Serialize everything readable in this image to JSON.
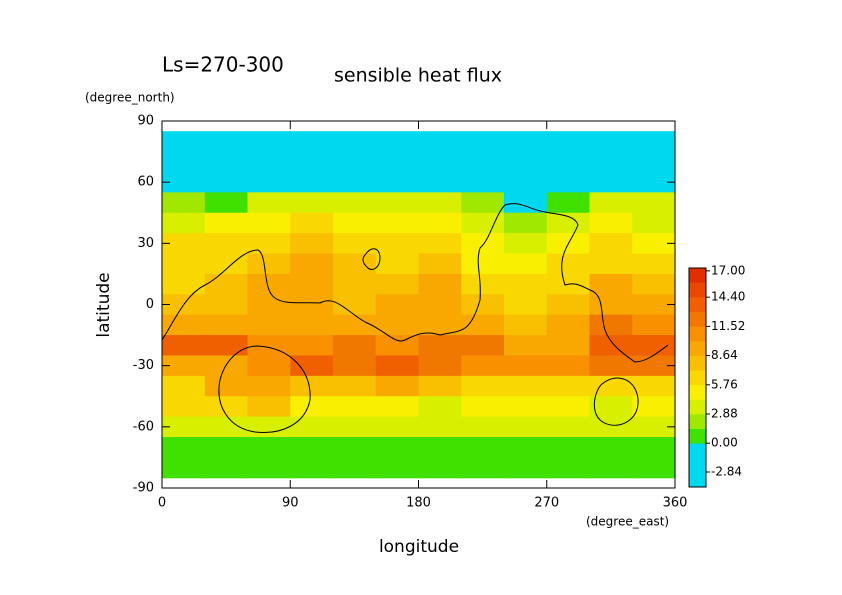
{
  "chart_data": {
    "type": "heatmap",
    "title": "sensible heat flux",
    "subtitle": "Ls=270-300",
    "x_label": "longitude",
    "x_unit": "(degree_east)",
    "y_label": "latitude",
    "y_unit": "(degree_north)",
    "xlim": [
      0,
      360
    ],
    "ylim": [
      -90,
      90
    ],
    "xticks": [
      0,
      90,
      180,
      270,
      360
    ],
    "yticks": [
      -90,
      -60,
      -30,
      0,
      30,
      60,
      90
    ],
    "x": [
      15,
      45,
      75,
      105,
      135,
      165,
      195,
      225,
      255,
      285,
      315,
      345
    ],
    "y": [
      80,
      70,
      60,
      50,
      40,
      30,
      20,
      10,
      0,
      -10,
      -20,
      -30,
      -40,
      -50,
      -60,
      -70,
      -80
    ],
    "z": [
      [
        -3,
        -3,
        -3,
        -3,
        -3,
        -3,
        -3,
        -3,
        -3,
        -3,
        -3,
        -3
      ],
      [
        -3,
        -3,
        -3,
        -3,
        -3,
        -3,
        -3,
        -3,
        -3,
        -3,
        -3,
        -3
      ],
      [
        -3,
        -3,
        -3,
        -3,
        -3,
        -3,
        -3,
        -3,
        -3,
        -3,
        -3,
        -3
      ],
      [
        2,
        1,
        3,
        3,
        3,
        3,
        3,
        2,
        -2,
        1,
        3,
        3
      ],
      [
        4,
        5,
        5,
        6,
        5,
        5,
        5,
        4,
        2,
        3,
        5,
        4
      ],
      [
        6,
        7,
        7,
        8,
        6,
        6,
        7,
        5,
        3,
        5,
        6,
        5
      ],
      [
        7,
        7,
        8,
        9,
        8,
        7,
        8,
        5,
        5,
        6,
        7,
        6
      ],
      [
        7,
        8,
        9,
        10,
        8,
        8,
        9,
        6,
        6,
        7,
        9,
        8
      ],
      [
        8,
        8,
        9,
        9,
        8,
        9,
        10,
        8,
        7,
        8,
        10,
        10
      ],
      [
        9,
        10,
        10,
        9,
        9,
        10,
        10,
        9,
        8,
        9,
        12,
        11
      ],
      [
        14,
        13,
        11,
        11,
        12,
        11,
        12,
        12,
        10,
        10,
        13,
        14
      ],
      [
        10,
        10,
        11,
        13,
        12,
        14,
        12,
        11,
        11,
        11,
        12,
        12
      ],
      [
        7,
        9,
        10,
        8,
        8,
        9,
        8,
        6,
        6,
        7,
        6,
        7
      ],
      [
        6,
        7,
        8,
        5,
        5,
        5,
        4,
        5,
        5,
        5,
        4,
        5
      ],
      [
        3,
        4,
        4,
        3,
        3,
        3,
        3,
        3,
        3,
        3,
        3,
        3
      ],
      [
        1,
        1,
        1,
        1,
        1,
        1,
        1,
        1,
        1,
        1,
        1,
        1
      ],
      [
        0.5,
        0.5,
        0.5,
        0.5,
        0.5,
        0.5,
        0.5,
        0.5,
        0.5,
        0.5,
        0.5,
        0.5
      ]
    ],
    "colorbar_lim": [
      -4.32,
      17.28
    ],
    "colors": [
      "#00d8f0",
      "#00d8f0",
      "#00d8f0",
      "#40e000",
      "#a0e800",
      "#d8f000",
      "#f8f000",
      "#f8d800",
      "#f8c000",
      "#f8a800",
      "#f89000",
      "#f07800",
      "#f06000",
      "#e84800",
      "#e03000"
    ],
    "colorbar_ticks": [
      {
        "value": 17,
        "label": "17.00"
      },
      {
        "value": 14.4,
        "label": "14.40"
      },
      {
        "value": 11.52,
        "label": "11.52"
      },
      {
        "value": 8.64,
        "label": "8.64"
      },
      {
        "value": 5.76,
        "label": "5.76"
      },
      {
        "value": 2.88,
        "label": "2.88"
      },
      {
        "value": 0,
        "label": "0.00"
      },
      -2.84
    ]
  }
}
